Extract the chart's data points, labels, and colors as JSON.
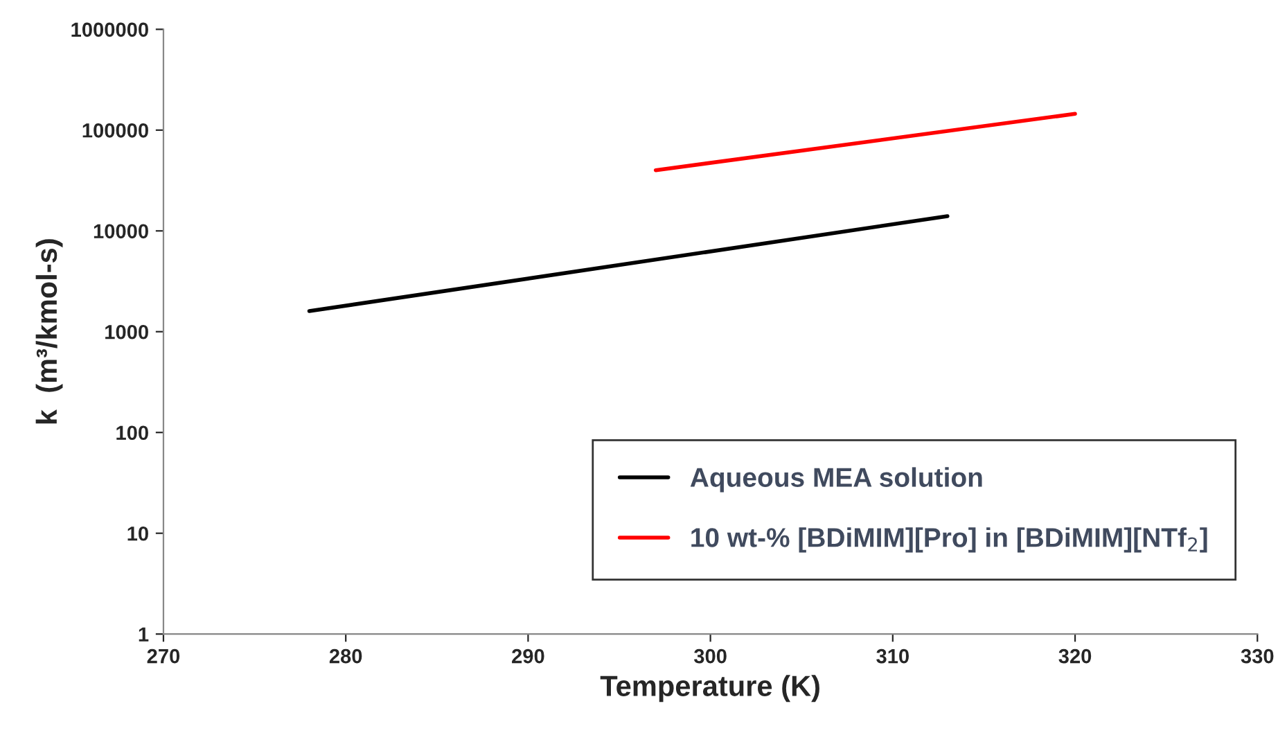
{
  "chart_data": {
    "type": "line",
    "xlabel": "Temperature (K)",
    "ylabel": "k  (m³/kmol-s)",
    "series": [
      {
        "name": "Aqueous MEA solution",
        "color": "#000000",
        "x": [
          278,
          313
        ],
        "values": [
          1600,
          14000
        ]
      },
      {
        "name": "10 wt-% [BDiMIM][Pro] in [BDiMIM][NTf$_{2}$]",
        "color": "#ff0000",
        "x": [
          297,
          320
        ],
        "values": [
          40000,
          145000
        ]
      }
    ],
    "xlim": [
      270,
      330
    ],
    "xticks": [
      270,
      280,
      290,
      300,
      310,
      320,
      330
    ],
    "ylim": [
      1,
      1000000
    ],
    "yticks": [
      1,
      10,
      100,
      1000,
      10000,
      100000,
      1000000
    ],
    "log": "y",
    "grid": false,
    "legend": "bottom right",
    "marker": "none",
    "line_style": "solid"
  }
}
